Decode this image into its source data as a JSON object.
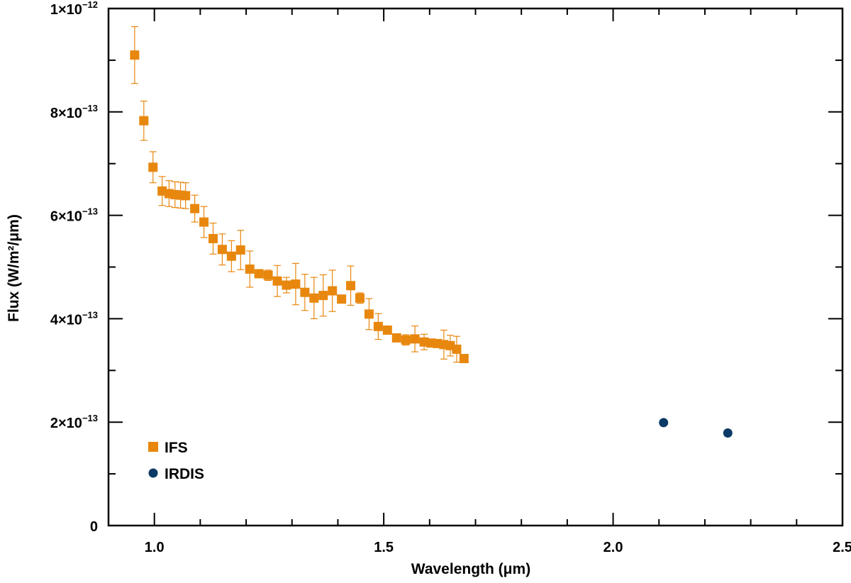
{
  "chart_data": {
    "type": "scatter",
    "title": "",
    "xlabel": "Wavelength (μm)",
    "ylabel": "Flux (W/m²/μm)",
    "xlim": [
      0.9,
      2.5
    ],
    "ylim": [
      0,
      1e-12
    ],
    "grid": false,
    "legend_position": "bottom-left",
    "x_ticks": [
      {
        "value": 1.0,
        "label": "1.0"
      },
      {
        "value": 1.5,
        "label": "1.5"
      },
      {
        "value": 2.0,
        "label": "2.0"
      },
      {
        "value": 2.5,
        "label": "2.5"
      }
    ],
    "y_ticks": [
      {
        "value": 0,
        "label": "0",
        "base": "0",
        "exp": ""
      },
      {
        "value": 2e-13,
        "label": "2×10⁻¹³",
        "base": "2×10",
        "exp": "−13"
      },
      {
        "value": 4e-13,
        "label": "4×10⁻¹³",
        "base": "4×10",
        "exp": "−13"
      },
      {
        "value": 6e-13,
        "label": "6×10⁻¹³",
        "base": "6×10",
        "exp": "−13"
      },
      {
        "value": 8e-13,
        "label": "8×10⁻¹³",
        "base": "8×10",
        "exp": "−13"
      },
      {
        "value": 1e-12,
        "label": "1×10⁻¹²",
        "base": "1×10",
        "exp": "−12"
      }
    ],
    "series": [
      {
        "name": "IFS",
        "marker": "square",
        "color": "#E8870E",
        "points": [
          {
            "x": 0.957,
            "y": 9.1e-13,
            "err": 5.5e-14
          },
          {
            "x": 0.977,
            "y": 7.83e-13,
            "err": 3.8e-14
          },
          {
            "x": 0.997,
            "y": 6.93e-13,
            "err": 3e-14
          },
          {
            "x": 1.017,
            "y": 6.47e-13,
            "err": 2.8e-14
          },
          {
            "x": 1.032,
            "y": 6.42e-13,
            "err": 2.5e-14
          },
          {
            "x": 1.045,
            "y": 6.4e-13,
            "err": 2.5e-14
          },
          {
            "x": 1.057,
            "y": 6.39e-13,
            "err": 2.5e-14
          },
          {
            "x": 1.068,
            "y": 6.38e-13,
            "err": 2.5e-14
          },
          {
            "x": 1.088,
            "y": 6.13e-13,
            "err": 2.6e-14
          },
          {
            "x": 1.108,
            "y": 5.87e-13,
            "err": 3e-14
          },
          {
            "x": 1.128,
            "y": 5.55e-13,
            "err": 3e-14
          },
          {
            "x": 1.148,
            "y": 5.34e-13,
            "err": 3e-14
          },
          {
            "x": 1.168,
            "y": 5.21e-13,
            "err": 3e-14
          },
          {
            "x": 1.188,
            "y": 5.33e-13,
            "err": 3.8e-14
          },
          {
            "x": 1.208,
            "y": 4.96e-13,
            "err": 3.5e-14
          },
          {
            "x": 1.228,
            "y": 4.87e-13,
            "err": 5e-15
          },
          {
            "x": 1.248,
            "y": 4.84e-13,
            "err": 1e-14
          },
          {
            "x": 1.268,
            "y": 4.73e-13,
            "err": 3e-14
          },
          {
            "x": 1.288,
            "y": 4.65e-13,
            "err": 1.5e-14
          },
          {
            "x": 1.308,
            "y": 4.67e-13,
            "err": 4e-14
          },
          {
            "x": 1.328,
            "y": 4.51e-13,
            "err": 3.5e-14
          },
          {
            "x": 1.348,
            "y": 4.4e-13,
            "err": 4e-14
          },
          {
            "x": 1.368,
            "y": 4.45e-13,
            "err": 4e-14
          },
          {
            "x": 1.388,
            "y": 4.54e-13,
            "err": 4e-14
          },
          {
            "x": 1.408,
            "y": 4.38e-13,
            "err": 5e-15
          },
          {
            "x": 1.428,
            "y": 4.64e-13,
            "err": 3.8e-14
          },
          {
            "x": 1.448,
            "y": 4.4e-13,
            "err": 1e-14
          },
          {
            "x": 1.468,
            "y": 4.09e-13,
            "err": 3e-14
          },
          {
            "x": 1.488,
            "y": 3.85e-13,
            "err": 2.5e-14
          },
          {
            "x": 1.508,
            "y": 3.78e-13,
            "err": 5e-15
          },
          {
            "x": 1.528,
            "y": 3.63e-13,
            "err": 5e-15
          },
          {
            "x": 1.548,
            "y": 3.59e-13,
            "err": 1e-14
          },
          {
            "x": 1.568,
            "y": 3.61e-13,
            "err": 2.5e-14
          },
          {
            "x": 1.588,
            "y": 3.55e-13,
            "err": 1.5e-14
          },
          {
            "x": 1.603,
            "y": 3.53e-13,
            "err": 5e-15
          },
          {
            "x": 1.617,
            "y": 3.52e-13,
            "err": 5e-15
          },
          {
            "x": 1.631,
            "y": 3.5e-13,
            "err": 2.8e-14
          },
          {
            "x": 1.645,
            "y": 3.48e-13,
            "err": 2e-14
          },
          {
            "x": 1.659,
            "y": 3.41e-13,
            "err": 2.5e-14
          },
          {
            "x": 1.675,
            "y": 3.23e-13,
            "err": 5e-15
          }
        ]
      },
      {
        "name": "IRDIS",
        "marker": "circle",
        "color": "#0B3A66",
        "points": [
          {
            "x": 2.11,
            "y": 1.99e-13
          },
          {
            "x": 2.25,
            "y": 1.79e-13
          }
        ]
      }
    ]
  }
}
